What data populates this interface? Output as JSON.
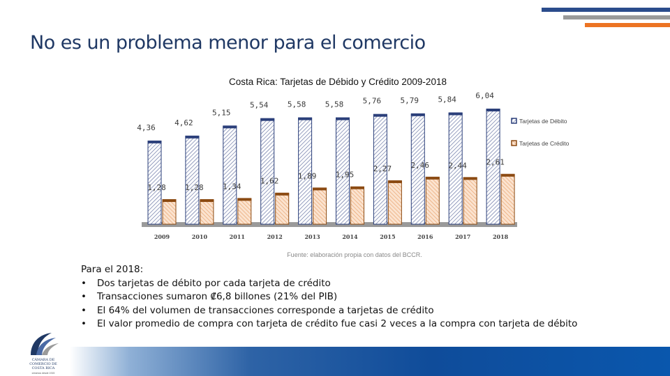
{
  "slide": {
    "title": "No es un problema menor para el comercio",
    "colors": {
      "stripe1": "#2b4c8c",
      "stripe2": "#9a9a9a",
      "stripe3": "#ec7423",
      "title": "#1f3864"
    }
  },
  "chart_data": {
    "type": "bar",
    "title": "Costa Rica: Tarjetas de Débido y Crédito 2009-2018",
    "categories": [
      "2009",
      "2010",
      "2011",
      "2012",
      "2013",
      "2014",
      "2015",
      "2016",
      "2017",
      "2018"
    ],
    "series": [
      {
        "name": "Tarjetas de Débito",
        "color": "#2b3f7a",
        "values": [
          4.36,
          4.62,
          5.15,
          5.54,
          5.58,
          5.58,
          5.76,
          5.79,
          5.84,
          6.04
        ],
        "labels": [
          "4,36",
          "4,62",
          "5,15",
          "5,54",
          "5,58",
          "5,58",
          "5,76",
          "5,79",
          "5,84",
          "6,04"
        ]
      },
      {
        "name": "Tarjetas de Crédito",
        "color": "#8b4a12",
        "values": [
          1.28,
          1.28,
          1.34,
          1.62,
          1.89,
          1.95,
          2.27,
          2.46,
          2.44,
          2.61
        ],
        "labels": [
          "1,28",
          "1,28",
          "1,34",
          "1,62",
          "1,89",
          "1,95",
          "2,27",
          "2,46",
          "2,44",
          "2,61"
        ]
      }
    ],
    "ylim": [
      0,
      6.5
    ],
    "xlabel": "",
    "ylabel": "",
    "grid": false,
    "legend": "right",
    "source": "Fuente: elaboración propia con datos del BCCR."
  },
  "notes": {
    "heading": "Para el 2018:",
    "items": [
      "Dos tarjetas de débito por cada tarjeta de crédito",
      "Transacciones sumaron ₡6,8 billones (21% del PIB)",
      "El 64% del volumen de transacciones corresponde a tarjetas de crédito",
      "El valor promedio de compra con tarjeta de crédito fue casi 2 veces a la compra con tarjeta de débito"
    ]
  },
  "logo": {
    "name": "CÁMARA DE COMERCIO DE COSTA RICA",
    "tagline": "creamos desde 1915"
  }
}
